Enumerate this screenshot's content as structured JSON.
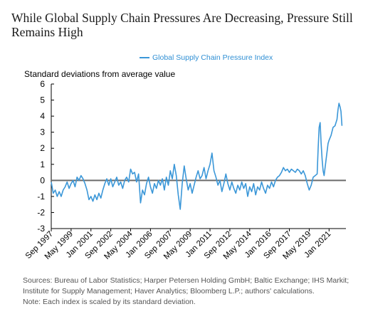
{
  "title": "While Global Supply Chain Pressures Are Decreasing, Pressure Still Remains High",
  "footer": {
    "sources_line1": "Sources: Bureau of Labor Statistics; Harper Petersen Holding GmbH; Baltic Exchange; IHS Markit;",
    "sources_line2": "Institute for Supply Management; Haver Analytics; Bloomberg L.P.; authors' calculations.",
    "note": "Note: Each index is scaled by its standard deviation."
  },
  "colors": {
    "series": "#3b97d8",
    "zero_line": "#6b6b6b",
    "axis": "#000000"
  },
  "chart_data": {
    "type": "line",
    "ylabel": "Standard deviations from average value",
    "ylim": [
      -3,
      6
    ],
    "yticks": [
      6,
      5,
      4,
      3,
      2,
      1,
      0,
      -1,
      -2,
      -3
    ],
    "xlim": [
      "1997-09",
      "2022-06"
    ],
    "xticks": [
      {
        "label": "Sep 1997",
        "date": "1997-09"
      },
      {
        "label": "May 1999",
        "date": "1999-05"
      },
      {
        "label": "Jan 2001",
        "date": "2001-01"
      },
      {
        "label": "Sep 2002",
        "date": "2002-09"
      },
      {
        "label": "May 2004",
        "date": "2004-05"
      },
      {
        "label": "Jan 2006",
        "date": "2006-01"
      },
      {
        "label": "Sep 2007",
        "date": "2007-09"
      },
      {
        "label": "May 2009",
        "date": "2009-05"
      },
      {
        "label": "Jan 2011",
        "date": "2011-01"
      },
      {
        "label": "Sep 2012",
        "date": "2012-09"
      },
      {
        "label": "May 2014",
        "date": "2014-05"
      },
      {
        "label": "Jan 2016",
        "date": "2016-01"
      },
      {
        "label": "Sep 2017",
        "date": "2017-09"
      },
      {
        "label": "May 2019",
        "date": "2019-05"
      },
      {
        "label": "Jan 2021",
        "date": "2021-01"
      }
    ],
    "grid": false,
    "legend": "top-center",
    "series": [
      {
        "name": "Global Supply Chain Pressure Index",
        "points": [
          [
            "1997-09",
            -0.1
          ],
          [
            "1997-11",
            -0.8
          ],
          [
            "1998-01",
            -0.6
          ],
          [
            "1998-03",
            -1.0
          ],
          [
            "1998-05",
            -0.7
          ],
          [
            "1998-07",
            -1.0
          ],
          [
            "1998-09",
            -0.6
          ],
          [
            "1998-11",
            -0.4
          ],
          [
            "1999-01",
            -0.1
          ],
          [
            "1999-03",
            -0.5
          ],
          [
            "1999-05",
            -0.2
          ],
          [
            "1999-07",
            0.0
          ],
          [
            "1999-09",
            -0.4
          ],
          [
            "1999-11",
            0.2
          ],
          [
            "2000-01",
            0.0
          ],
          [
            "2000-03",
            0.3
          ],
          [
            "2000-05",
            0.1
          ],
          [
            "2000-07",
            -0.2
          ],
          [
            "2000-09",
            -0.6
          ],
          [
            "2000-11",
            -1.2
          ],
          [
            "2001-01",
            -1.0
          ],
          [
            "2001-03",
            -1.3
          ],
          [
            "2001-05",
            -0.9
          ],
          [
            "2001-07",
            -1.2
          ],
          [
            "2001-09",
            -0.8
          ],
          [
            "2001-11",
            -1.1
          ],
          [
            "2002-01",
            -0.6
          ],
          [
            "2002-03",
            -0.2
          ],
          [
            "2002-05",
            0.1
          ],
          [
            "2002-07",
            -0.3
          ],
          [
            "2002-09",
            0.1
          ],
          [
            "2002-11",
            -0.4
          ],
          [
            "2003-01",
            -0.1
          ],
          [
            "2003-03",
            0.2
          ],
          [
            "2003-05",
            -0.3
          ],
          [
            "2003-07",
            -0.1
          ],
          [
            "2003-09",
            -0.5
          ],
          [
            "2003-11",
            0.0
          ],
          [
            "2004-01",
            0.2
          ],
          [
            "2004-03",
            -0.1
          ],
          [
            "2004-05",
            0.7
          ],
          [
            "2004-07",
            0.4
          ],
          [
            "2004-09",
            0.5
          ],
          [
            "2004-11",
            -0.1
          ],
          [
            "2005-01",
            0.4
          ],
          [
            "2005-03",
            -1.4
          ],
          [
            "2005-05",
            -0.6
          ],
          [
            "2005-07",
            -0.9
          ],
          [
            "2005-09",
            -0.2
          ],
          [
            "2005-11",
            0.2
          ],
          [
            "2006-01",
            -0.4
          ],
          [
            "2006-03",
            -0.8
          ],
          [
            "2006-05",
            -0.2
          ],
          [
            "2006-07",
            -0.5
          ],
          [
            "2006-09",
            0.0
          ],
          [
            "2006-11",
            -0.3
          ],
          [
            "2007-01",
            0.1
          ],
          [
            "2007-03",
            -0.6
          ],
          [
            "2007-05",
            0.2
          ],
          [
            "2007-07",
            -0.3
          ],
          [
            "2007-09",
            0.6
          ],
          [
            "2007-11",
            0.1
          ],
          [
            "2008-01",
            1.0
          ],
          [
            "2008-03",
            0.3
          ],
          [
            "2008-05",
            -0.9
          ],
          [
            "2008-07",
            -1.8
          ],
          [
            "2008-09",
            -0.2
          ],
          [
            "2008-11",
            0.9
          ],
          [
            "2009-01",
            0.1
          ],
          [
            "2009-03",
            -0.6
          ],
          [
            "2009-05",
            -0.2
          ],
          [
            "2009-07",
            -0.8
          ],
          [
            "2009-09",
            -0.3
          ],
          [
            "2009-11",
            0.2
          ],
          [
            "2010-01",
            0.6
          ],
          [
            "2010-03",
            0.1
          ],
          [
            "2010-05",
            0.3
          ],
          [
            "2010-07",
            0.8
          ],
          [
            "2010-09",
            0.1
          ],
          [
            "2010-11",
            0.6
          ],
          [
            "2011-01",
            1.0
          ],
          [
            "2011-03",
            1.7
          ],
          [
            "2011-05",
            0.6
          ],
          [
            "2011-07",
            0.2
          ],
          [
            "2011-09",
            -0.3
          ],
          [
            "2011-11",
            0.0
          ],
          [
            "2012-01",
            -0.7
          ],
          [
            "2012-03",
            -0.2
          ],
          [
            "2012-05",
            0.4
          ],
          [
            "2012-07",
            -0.2
          ],
          [
            "2012-09",
            -0.6
          ],
          [
            "2012-11",
            -0.1
          ],
          [
            "2013-01",
            -0.5
          ],
          [
            "2013-03",
            -0.8
          ],
          [
            "2013-05",
            -0.3
          ],
          [
            "2013-07",
            -0.6
          ],
          [
            "2013-09",
            -0.1
          ],
          [
            "2013-11",
            -0.5
          ],
          [
            "2014-01",
            -0.2
          ],
          [
            "2014-03",
            -1.0
          ],
          [
            "2014-05",
            -0.4
          ],
          [
            "2014-07",
            -0.7
          ],
          [
            "2014-09",
            -0.2
          ],
          [
            "2014-11",
            -0.9
          ],
          [
            "2015-01",
            -0.4
          ],
          [
            "2015-03",
            -0.6
          ],
          [
            "2015-05",
            -0.1
          ],
          [
            "2015-07",
            -0.5
          ],
          [
            "2015-09",
            -0.8
          ],
          [
            "2015-11",
            -0.3
          ],
          [
            "2016-01",
            -0.5
          ],
          [
            "2016-03",
            -0.1
          ],
          [
            "2016-05",
            -0.4
          ],
          [
            "2016-07",
            0.0
          ],
          [
            "2016-09",
            0.2
          ],
          [
            "2016-11",
            0.3
          ],
          [
            "2017-01",
            0.5
          ],
          [
            "2017-03",
            0.8
          ],
          [
            "2017-05",
            0.6
          ],
          [
            "2017-07",
            0.7
          ],
          [
            "2017-09",
            0.5
          ],
          [
            "2017-11",
            0.7
          ],
          [
            "2018-01",
            0.6
          ],
          [
            "2018-03",
            0.5
          ],
          [
            "2018-05",
            0.7
          ],
          [
            "2018-07",
            0.6
          ],
          [
            "2018-09",
            0.4
          ],
          [
            "2018-11",
            0.6
          ],
          [
            "2019-01",
            0.3
          ],
          [
            "2019-03",
            -0.2
          ],
          [
            "2019-05",
            -0.6
          ],
          [
            "2019-07",
            -0.3
          ],
          [
            "2019-09",
            0.2
          ],
          [
            "2019-11",
            0.3
          ],
          [
            "2020-01",
            0.4
          ],
          [
            "2020-02",
            2.0
          ],
          [
            "2020-03",
            3.3
          ],
          [
            "2020-04",
            3.6
          ],
          [
            "2020-05",
            2.3
          ],
          [
            "2020-06",
            1.3
          ],
          [
            "2020-07",
            0.6
          ],
          [
            "2020-08",
            0.3
          ],
          [
            "2020-09",
            0.8
          ],
          [
            "2020-10",
            1.3
          ],
          [
            "2020-11",
            1.8
          ],
          [
            "2020-12",
            2.3
          ],
          [
            "2021-01",
            2.5
          ],
          [
            "2021-03",
            2.8
          ],
          [
            "2021-05",
            3.3
          ],
          [
            "2021-07",
            3.4
          ],
          [
            "2021-09",
            3.8
          ],
          [
            "2021-10",
            4.4
          ],
          [
            "2021-11",
            4.8
          ],
          [
            "2021-12",
            4.6
          ],
          [
            "2022-01",
            4.3
          ],
          [
            "2022-02",
            3.4
          ]
        ]
      }
    ]
  }
}
